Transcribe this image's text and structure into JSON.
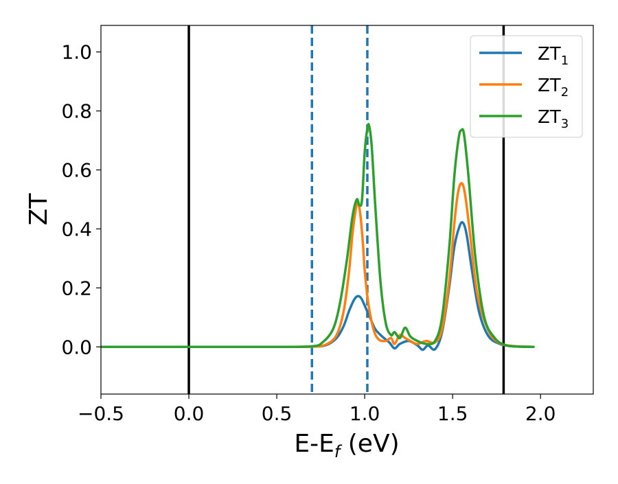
{
  "chart_data": {
    "type": "line",
    "xlabel": "E-E",
    "xlabel_sub": "f",
    "xlabel_unit": " (eV)",
    "ylabel": "ZT",
    "xlim": [
      -0.5,
      2.3
    ],
    "ylim": [
      -0.16,
      1.09
    ],
    "xticks": [
      -0.5,
      0.0,
      0.5,
      1.0,
      1.5,
      2.0
    ],
    "xtick_labels": [
      "−0.5",
      "0.0",
      "0.5",
      "1.0",
      "1.5",
      "2.0"
    ],
    "yticks": [
      0.0,
      0.2,
      0.4,
      0.6,
      0.8,
      1.0
    ],
    "ytick_labels": [
      "0.0",
      "0.2",
      "0.4",
      "0.6",
      "0.8",
      "1.0"
    ],
    "grid": false,
    "legend_position": "top-right",
    "vertical_lines": [
      {
        "x": 0.0,
        "style": "solid",
        "color": "#000000"
      },
      {
        "x": 1.79,
        "style": "solid",
        "color": "#000000"
      },
      {
        "x": 0.7,
        "style": "dashed",
        "color": "#1f77b4"
      },
      {
        "x": 1.015,
        "style": "dashed",
        "color": "#1f77b4"
      }
    ],
    "series": [
      {
        "name": "ZT",
        "name_sub": "1",
        "color": "#1f77b4",
        "x": [
          -0.5,
          0.0,
          0.5,
          0.7,
          0.78,
          0.84,
          0.88,
          0.91,
          0.94,
          0.96,
          0.98,
          1.0,
          1.03,
          1.06,
          1.1,
          1.14,
          1.17,
          1.2,
          1.25,
          1.3,
          1.33,
          1.36,
          1.4,
          1.44,
          1.48,
          1.51,
          1.54,
          1.56,
          1.58,
          1.61,
          1.65,
          1.7,
          1.76,
          1.84,
          1.96
        ],
        "y": [
          0.0,
          0.0,
          0.0,
          0.001,
          0.006,
          0.03,
          0.07,
          0.12,
          0.16,
          0.172,
          0.165,
          0.14,
          0.1,
          0.06,
          0.035,
          0.015,
          -0.005,
          0.01,
          0.02,
          0.005,
          -0.01,
          0.005,
          -0.008,
          0.05,
          0.2,
          0.34,
          0.41,
          0.42,
          0.38,
          0.26,
          0.12,
          0.04,
          0.012,
          0.002,
          0.0
        ]
      },
      {
        "name": "ZT",
        "name_sub": "2",
        "color": "#ff7f0e",
        "x": [
          -0.5,
          0.0,
          0.5,
          0.7,
          0.78,
          0.84,
          0.88,
          0.91,
          0.93,
          0.95,
          0.96,
          0.975,
          0.99,
          1.0,
          1.02,
          1.05,
          1.08,
          1.12,
          1.15,
          1.17,
          1.2,
          1.23,
          1.26,
          1.3,
          1.35,
          1.4,
          1.44,
          1.48,
          1.51,
          1.53,
          1.55,
          1.57,
          1.6,
          1.64,
          1.7,
          1.76,
          1.84,
          1.96
        ],
        "y": [
          0.0,
          0.0,
          0.0,
          0.001,
          0.008,
          0.04,
          0.12,
          0.25,
          0.38,
          0.47,
          0.49,
          0.45,
          0.35,
          0.26,
          0.15,
          0.06,
          0.025,
          0.02,
          0.03,
          0.01,
          0.04,
          0.03,
          0.02,
          0.01,
          0.02,
          0.015,
          0.06,
          0.22,
          0.42,
          0.52,
          0.555,
          0.52,
          0.38,
          0.18,
          0.06,
          0.015,
          0.003,
          0.0
        ]
      },
      {
        "name": "ZT",
        "name_sub": "3",
        "color": "#2ca02c",
        "x": [
          -0.5,
          0.0,
          0.5,
          0.7,
          0.76,
          0.82,
          0.86,
          0.9,
          0.93,
          0.955,
          0.97,
          0.985,
          1.0,
          1.015,
          1.025,
          1.04,
          1.06,
          1.09,
          1.12,
          1.15,
          1.17,
          1.2,
          1.23,
          1.26,
          1.3,
          1.35,
          1.4,
          1.44,
          1.48,
          1.51,
          1.535,
          1.55,
          1.565,
          1.59,
          1.63,
          1.68,
          1.74,
          1.8,
          1.88,
          1.96
        ],
        "y": [
          0.0,
          0.0,
          0.0,
          0.002,
          0.015,
          0.06,
          0.15,
          0.3,
          0.44,
          0.5,
          0.48,
          0.5,
          0.66,
          0.74,
          0.75,
          0.68,
          0.48,
          0.22,
          0.08,
          0.04,
          0.05,
          0.03,
          0.065,
          0.035,
          0.02,
          0.01,
          0.02,
          0.1,
          0.33,
          0.58,
          0.71,
          0.735,
          0.72,
          0.58,
          0.3,
          0.1,
          0.03,
          0.006,
          0.001,
          0.0
        ]
      }
    ]
  }
}
